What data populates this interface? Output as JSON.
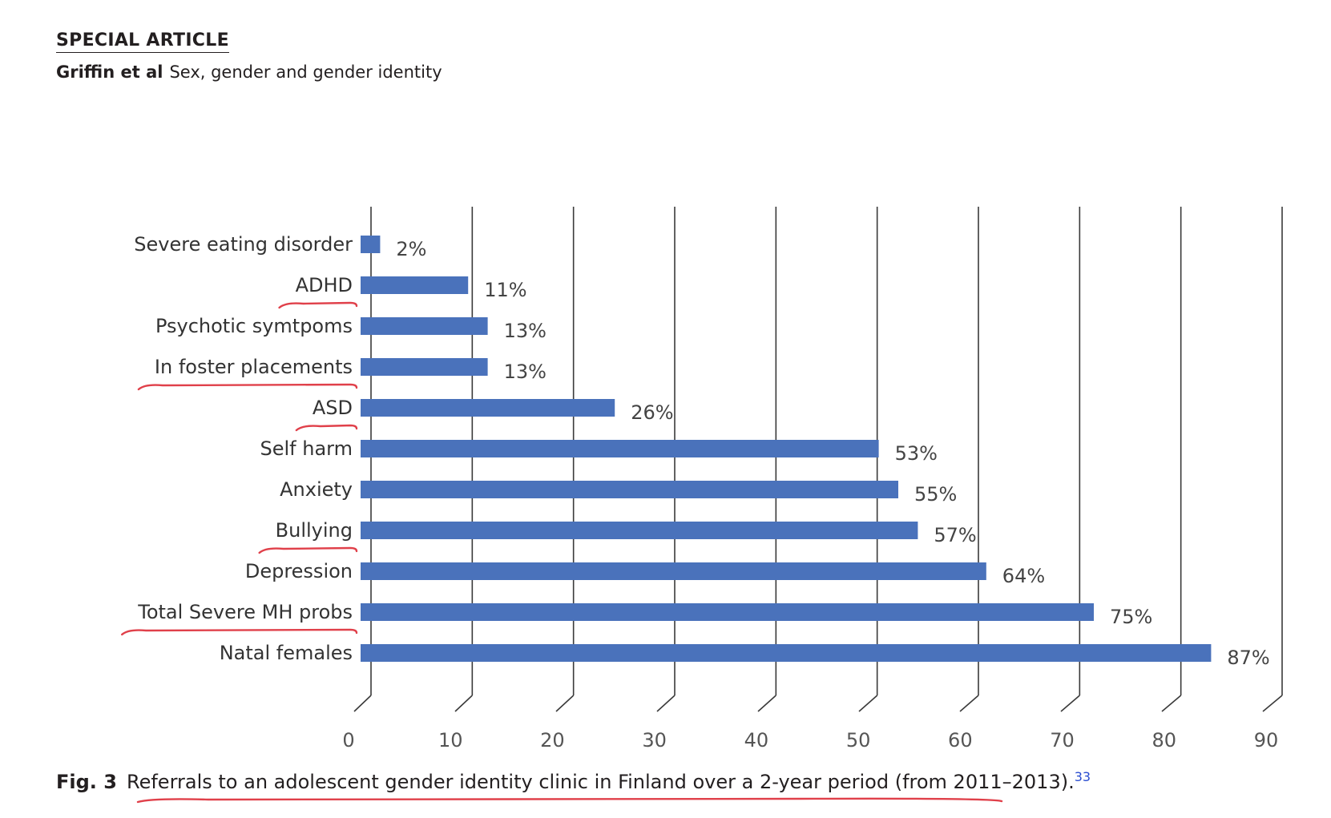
{
  "header": {
    "section_label": "SPECIAL ARTICLE",
    "authors": "Griffin et al",
    "running_title": "Sex, gender and gender identity"
  },
  "caption": {
    "label": "Fig. 3",
    "text": "Referrals to an adolescent gender identity clinic in Finland over a 2-year period (from 2011–2013).",
    "reference": "33"
  },
  "colors": {
    "bar": "#4a72bb",
    "gridline": "#3a3a3a",
    "annotation_underline": "#e0404a"
  },
  "chart_data": {
    "type": "bar",
    "orientation": "horizontal",
    "categories": [
      "Severe eating disorder",
      "ADHD",
      "Psychotic symtpoms",
      "In foster placements",
      "ASD",
      "Self harm",
      "Anxiety",
      "Bullying",
      "Depression",
      "Total Severe MH probs",
      "Natal females"
    ],
    "values": [
      2,
      11,
      13,
      13,
      26,
      53,
      55,
      57,
      64,
      75,
      87
    ],
    "data_labels": [
      "2%",
      "11%",
      "13%",
      "13%",
      "26%",
      "53%",
      "55%",
      "57%",
      "64%",
      "75%",
      "87%"
    ],
    "x_ticks": [
      "0",
      "10",
      "20",
      "30",
      "40",
      "50",
      "60",
      "70",
      "80",
      "90"
    ],
    "xlim": [
      0,
      90
    ],
    "grid": true,
    "style": "3d-perspective gridlines",
    "underlined_categories": [
      "ADHD",
      "In foster placements",
      "ASD",
      "Bullying",
      "Total Severe MH probs"
    ]
  }
}
